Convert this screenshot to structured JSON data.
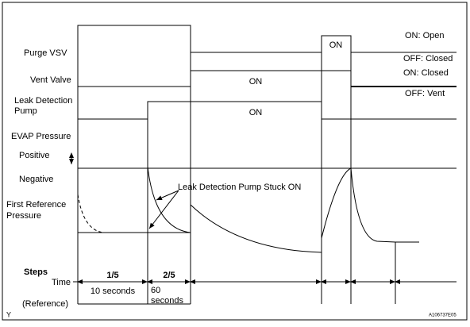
{
  "signals": {
    "purge_vsv": {
      "label": "Purge VSV",
      "state": "ON",
      "on_text": "ON: Open",
      "off_text": "OFF: Closed"
    },
    "vent_valve": {
      "label": "Vent Valve",
      "state": "ON",
      "on_text": "ON: Closed",
      "off_text": "OFF: Vent"
    },
    "leak_pump": {
      "label_lines": [
        "Leak Detection",
        "Pump"
      ],
      "state": "ON"
    },
    "evap": {
      "label": "EVAP Pressure",
      "positive": "Positive",
      "negative": "Negative",
      "reference_lines": [
        "First Reference",
        "Pressure"
      ],
      "annotation": "Leak Detection Pump Stuck ON"
    }
  },
  "steps": {
    "title": "Steps",
    "time": "Time",
    "reference": "(Reference)",
    "items": [
      {
        "label": "1/5",
        "duration": [
          "10 seconds"
        ]
      },
      {
        "label": "2/5",
        "duration": [
          "60",
          "seconds"
        ]
      }
    ]
  },
  "footer": {
    "left": "Y",
    "code": "A106737E05"
  }
}
